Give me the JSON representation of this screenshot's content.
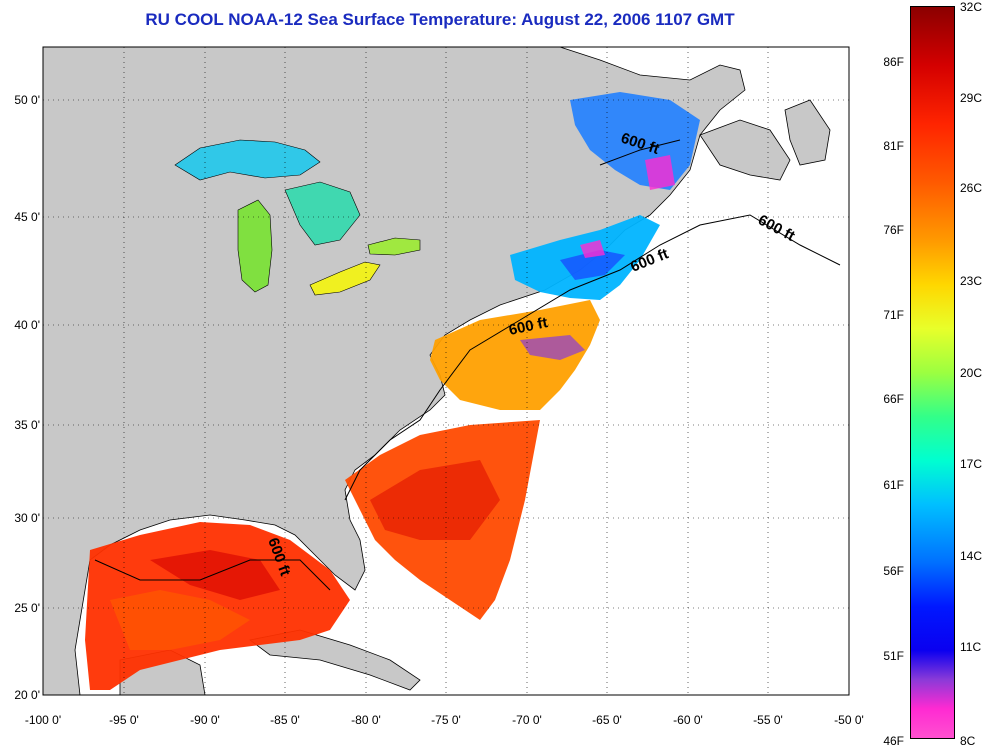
{
  "title": "RU COOL  NOAA-12  Sea Surface Temperature:  August 22, 2006 1107 GMT",
  "axes": {
    "lon_ticks": [
      "-100 0'",
      "-95 0'",
      "-90 0'",
      "-85 0'",
      "-80 0'",
      "-75 0'",
      "-70 0'",
      "-65 0'",
      "-60 0'",
      "-55 0'",
      "-50 0'"
    ],
    "lat_ticks": [
      "50 0'",
      "45 0'",
      "40 0'",
      "35 0'",
      "30 0'",
      "25 0'",
      "20 0'"
    ]
  },
  "depth_labels": [
    "600 ft",
    "600 ft",
    "600 ft",
    "600 ft",
    "600 ft"
  ],
  "colorbar": {
    "fahrenheit": [
      "86F",
      "81F",
      "76F",
      "71F",
      "66F",
      "61F",
      "56F",
      "51F",
      "46F"
    ],
    "celsius": [
      "32C",
      "29C",
      "26C",
      "23C",
      "20C",
      "17C",
      "14C",
      "11C",
      "8C"
    ]
  },
  "colors": {
    "land": "#c8c8c8",
    "ocean_nodata": "#ffffff",
    "title": "#1a2bbf",
    "warm": "#ff3000",
    "cool": "#00c8ff"
  }
}
